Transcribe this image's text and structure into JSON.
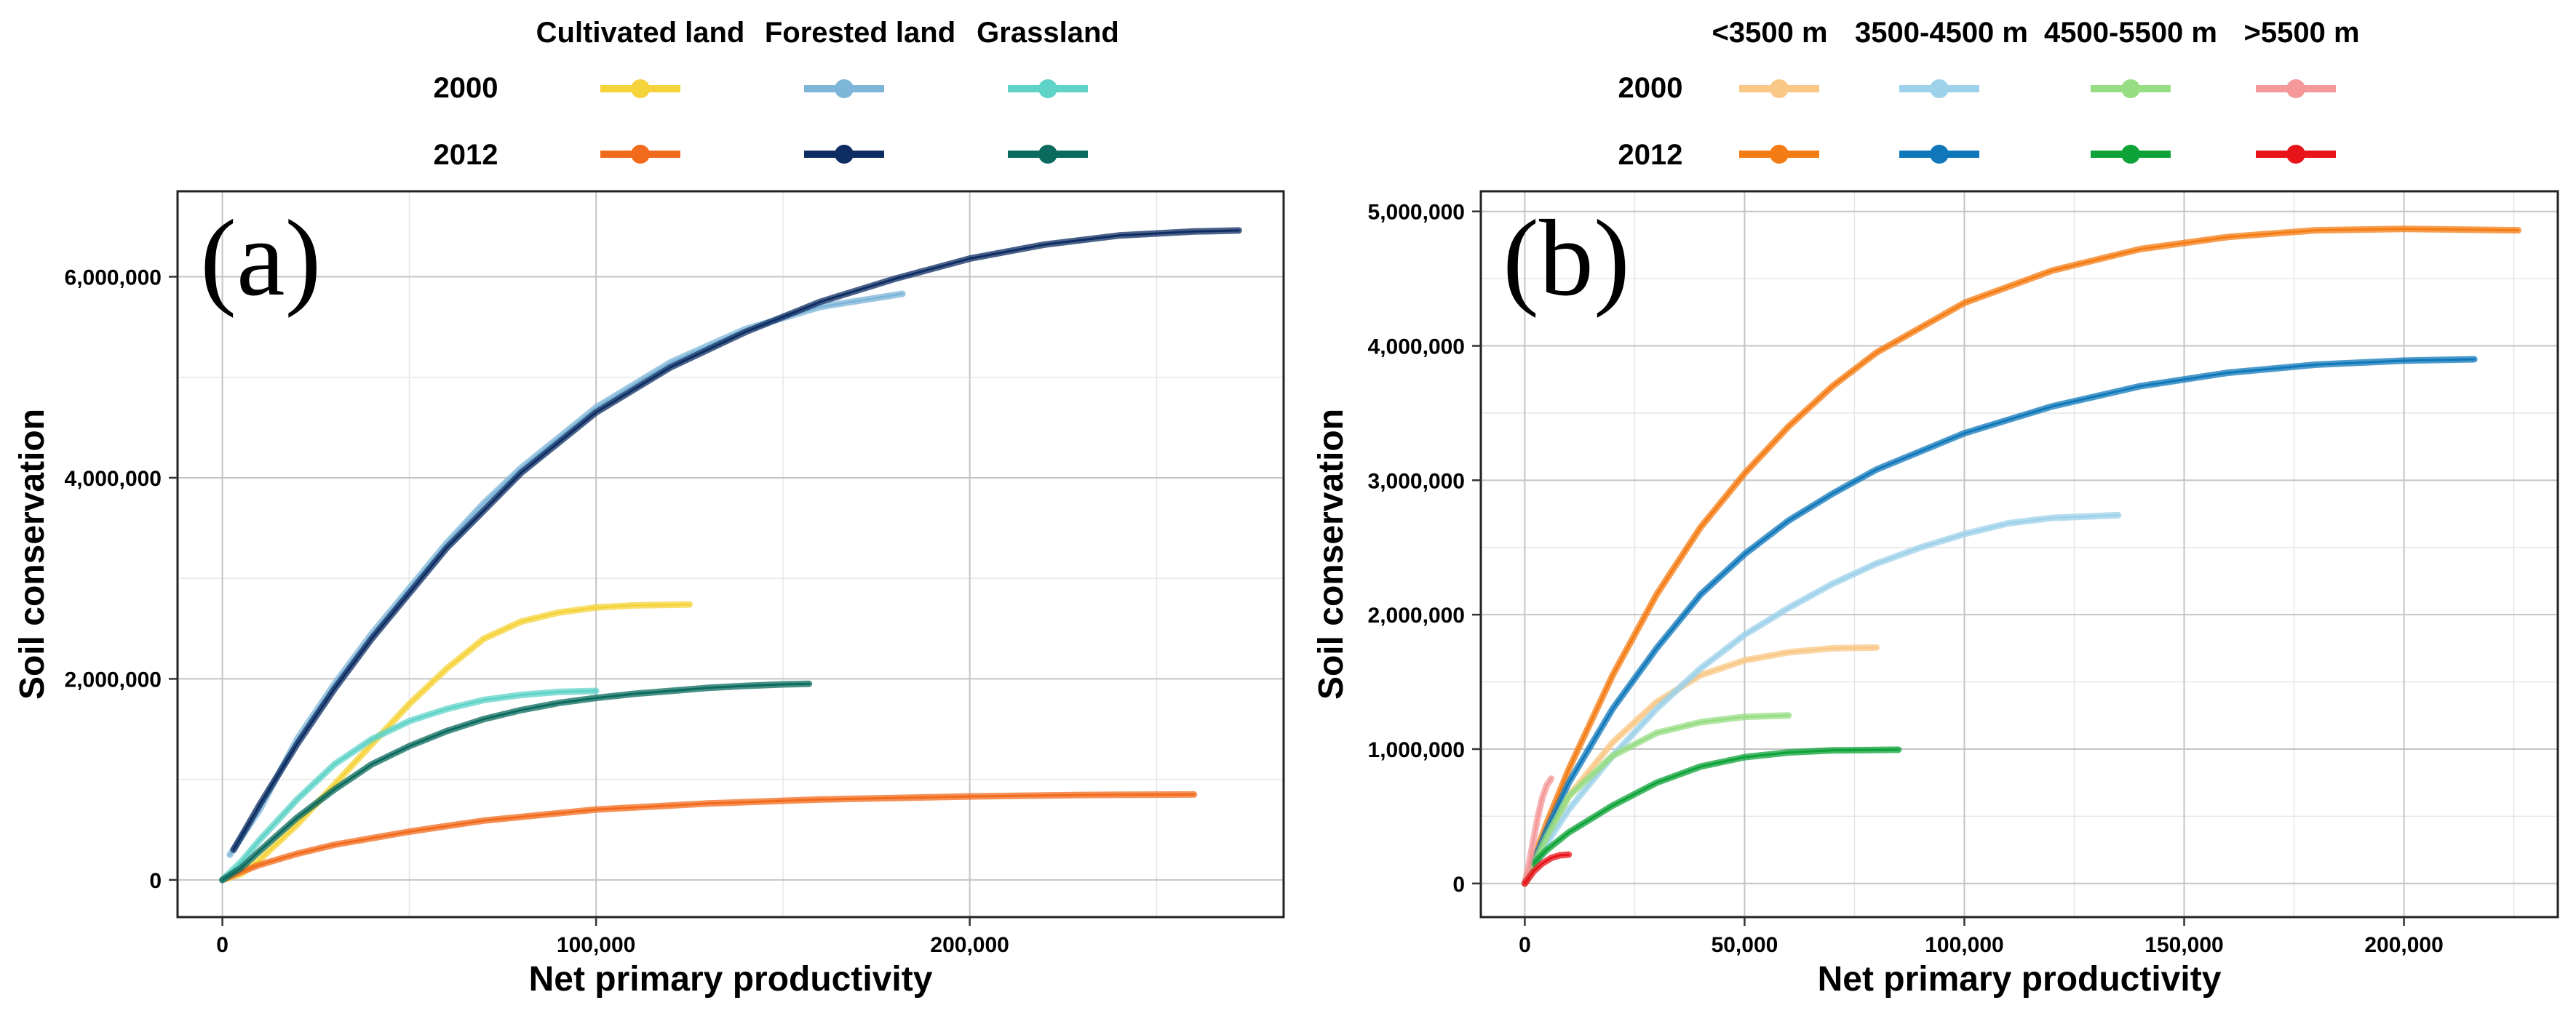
{
  "chart_data": [
    {
      "type": "line",
      "panel_label": "(a)",
      "xlabel": "Net primary productivity",
      "ylabel": "Soil conservation",
      "xlim": [
        -12000,
        284000
      ],
      "ylim": [
        -370000,
        6850000
      ],
      "xticks": [
        0,
        100000,
        200000
      ],
      "xtick_labels": [
        "0",
        "100,000",
        "200,000"
      ],
      "yticks": [
        0,
        2000000,
        4000000,
        6000000
      ],
      "ytick_labels": [
        "0",
        "2,000,000",
        "4,000,000",
        "6,000,000"
      ],
      "grid": true,
      "legend": {
        "placement": "top",
        "columns": [
          "Cultivated land",
          "Forested land",
          "Grassland"
        ],
        "rows": [
          "2000",
          "2012"
        ]
      },
      "series": [
        {
          "name": "Cultivated land 2000",
          "group": "Cultivated land",
          "year": "2000",
          "color": "#F5D33A",
          "x": [
            0,
            5000,
            10000,
            20000,
            30000,
            40000,
            50000,
            60000,
            70000,
            80000,
            90000,
            100000,
            110000,
            125000
          ],
          "y": [
            0,
            60000,
            200000,
            550000,
            950000,
            1350000,
            1750000,
            2100000,
            2400000,
            2570000,
            2660000,
            2710000,
            2730000,
            2740000
          ]
        },
        {
          "name": "Cultivated land 2012",
          "group": "Cultivated land",
          "year": "2012",
          "color": "#F26B1D",
          "x": [
            0,
            5000,
            10000,
            20000,
            30000,
            50000,
            70000,
            100000,
            130000,
            160000,
            200000,
            230000,
            260000
          ],
          "y": [
            0,
            80000,
            150000,
            260000,
            350000,
            480000,
            590000,
            700000,
            760000,
            800000,
            830000,
            845000,
            850000
          ]
        },
        {
          "name": "Forested land 2000",
          "group": "Forested land",
          "year": "2000",
          "color": "#7DB6D8",
          "x": [
            2000,
            10000,
            20000,
            30000,
            40000,
            50000,
            60000,
            70000,
            80000,
            90000,
            100000,
            120000,
            140000,
            160000,
            182000
          ],
          "y": [
            250000,
            700000,
            1400000,
            1950000,
            2450000,
            2900000,
            3350000,
            3750000,
            4100000,
            4400000,
            4700000,
            5150000,
            5480000,
            5700000,
            5830000
          ]
        },
        {
          "name": "Forested land 2012",
          "group": "Forested land",
          "year": "2012",
          "color": "#0E2D63",
          "x": [
            3000,
            10000,
            20000,
            30000,
            40000,
            50000,
            60000,
            80000,
            100000,
            120000,
            140000,
            160000,
            180000,
            200000,
            220000,
            240000,
            260000,
            272000
          ],
          "y": [
            300000,
            750000,
            1350000,
            1900000,
            2400000,
            2850000,
            3300000,
            4050000,
            4650000,
            5100000,
            5450000,
            5750000,
            5980000,
            6180000,
            6320000,
            6410000,
            6450000,
            6460000
          ]
        },
        {
          "name": "Grassland 2000",
          "group": "Grassland",
          "year": "2000",
          "color": "#5FD3C8",
          "x": [
            0,
            5000,
            10000,
            20000,
            30000,
            40000,
            50000,
            60000,
            70000,
            80000,
            90000,
            100000
          ],
          "y": [
            0,
            180000,
            400000,
            800000,
            1150000,
            1400000,
            1580000,
            1700000,
            1790000,
            1840000,
            1870000,
            1880000
          ]
        },
        {
          "name": "Grassland 2012",
          "group": "Grassland",
          "year": "2012",
          "color": "#0B6B5E",
          "x": [
            0,
            5000,
            10000,
            20000,
            30000,
            40000,
            50000,
            60000,
            70000,
            80000,
            90000,
            100000,
            110000,
            120000,
            130000,
            140000,
            150000,
            157000
          ],
          "y": [
            0,
            120000,
            290000,
            620000,
            900000,
            1150000,
            1330000,
            1480000,
            1600000,
            1690000,
            1760000,
            1810000,
            1850000,
            1880000,
            1910000,
            1930000,
            1945000,
            1950000
          ]
        }
      ]
    },
    {
      "type": "line",
      "panel_label": "(b)",
      "xlabel": "Net primary productivity",
      "ylabel": "Soil conservation",
      "xlim": [
        -10000,
        235000
      ],
      "ylim": [
        -250000,
        5150000
      ],
      "xticks": [
        0,
        50000,
        100000,
        150000,
        200000
      ],
      "xtick_labels": [
        "0",
        "50,000",
        "100,000",
        "150,000",
        "200,000"
      ],
      "yticks": [
        0,
        1000000,
        2000000,
        3000000,
        4000000,
        5000000
      ],
      "ytick_labels": [
        "0",
        "1,000,000",
        "2,000,000",
        "3,000,000",
        "4,000,000",
        "5,000,000"
      ],
      "grid": true,
      "legend": {
        "placement": "top",
        "columns": [
          "<3500 m",
          "3500-4500 m",
          "4500-5500 m",
          ">5500 m"
        ],
        "rows": [
          "2000",
          "2012"
        ]
      },
      "series": [
        {
          "name": "<3500 m 2000",
          "group": "<3500 m",
          "year": "2000",
          "color": "#F9C887",
          "x": [
            0,
            5000,
            10000,
            20000,
            30000,
            40000,
            50000,
            60000,
            70000,
            80000
          ],
          "y": [
            0,
            350000,
            650000,
            1050000,
            1350000,
            1550000,
            1660000,
            1720000,
            1750000,
            1755000
          ]
        },
        {
          "name": "<3500 m 2012",
          "group": "<3500 m",
          "year": "2012",
          "color": "#F47C14",
          "x": [
            0,
            5000,
            10000,
            20000,
            30000,
            40000,
            50000,
            60000,
            70000,
            80000,
            100000,
            120000,
            140000,
            160000,
            180000,
            200000,
            226000
          ],
          "y": [
            0,
            450000,
            850000,
            1550000,
            2150000,
            2650000,
            3050000,
            3400000,
            3700000,
            3950000,
            4320000,
            4560000,
            4720000,
            4810000,
            4860000,
            4870000,
            4860000
          ]
        },
        {
          "name": "3500-4500 m 2000",
          "group": "3500-4500 m",
          "year": "2000",
          "color": "#9ED2EA",
          "x": [
            0,
            5000,
            10000,
            20000,
            30000,
            40000,
            50000,
            60000,
            70000,
            80000,
            90000,
            100000,
            110000,
            120000,
            135000
          ],
          "y": [
            0,
            300000,
            550000,
            950000,
            1300000,
            1600000,
            1850000,
            2050000,
            2230000,
            2380000,
            2500000,
            2600000,
            2680000,
            2720000,
            2740000
          ]
        },
        {
          "name": "3500-4500 m 2012",
          "group": "3500-4500 m",
          "year": "2012",
          "color": "#1078BA",
          "x": [
            0,
            5000,
            10000,
            20000,
            30000,
            40000,
            50000,
            60000,
            70000,
            80000,
            100000,
            120000,
            140000,
            160000,
            180000,
            200000,
            216000
          ],
          "y": [
            0,
            400000,
            750000,
            1300000,
            1750000,
            2150000,
            2450000,
            2700000,
            2900000,
            3080000,
            3350000,
            3550000,
            3700000,
            3800000,
            3860000,
            3890000,
            3900000
          ]
        },
        {
          "name": "4500-5500 m 2000",
          "group": "4500-5500 m",
          "year": "2000",
          "color": "#97DD84",
          "x": [
            0,
            5000,
            10000,
            20000,
            30000,
            40000,
            50000,
            60000
          ],
          "y": [
            0,
            350000,
            650000,
            950000,
            1120000,
            1200000,
            1240000,
            1250000
          ]
        },
        {
          "name": "4500-5500 m 2012",
          "group": "4500-5500 m",
          "year": "2012",
          "color": "#0DA338",
          "x": [
            2000,
            5000,
            10000,
            20000,
            30000,
            40000,
            50000,
            60000,
            70000,
            85000
          ],
          "y": [
            150000,
            250000,
            380000,
            580000,
            750000,
            870000,
            940000,
            975000,
            990000,
            995000
          ]
        },
        {
          "name": ">5500 m 2000",
          "group": ">5500 m",
          "year": "2000",
          "color": "#F4989A",
          "x": [
            0,
            1000,
            2000,
            3000,
            4000,
            5000,
            6000
          ],
          "y": [
            0,
            150000,
            330000,
            500000,
            640000,
            730000,
            780000
          ]
        },
        {
          "name": ">5500 m 2012",
          "group": ">5500 m",
          "year": "2012",
          "color": "#E8141A",
          "x": [
            0,
            2000,
            4000,
            6000,
            8000,
            10000
          ],
          "y": [
            0,
            90000,
            150000,
            190000,
            210000,
            215000
          ]
        }
      ]
    }
  ]
}
